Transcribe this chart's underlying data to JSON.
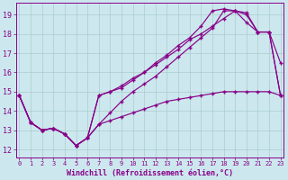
{
  "bg_color": "#cce8ee",
  "line_color": "#880088",
  "grid_color": "#aacccc",
  "xlabel": "Windchill (Refroidissement éolien,°C)",
  "xlabel_fontsize": 6.0,
  "ytick_labels": [
    "12",
    "13",
    "14",
    "15",
    "16",
    "17",
    "18",
    "19"
  ],
  "ytick_vals": [
    12,
    13,
    14,
    15,
    16,
    17,
    18,
    19
  ],
  "xtick_vals": [
    0,
    1,
    2,
    3,
    4,
    5,
    6,
    7,
    8,
    9,
    10,
    11,
    12,
    13,
    14,
    15,
    16,
    17,
    18,
    19,
    20,
    21,
    22,
    23
  ],
  "xlim": [
    -0.3,
    23.3
  ],
  "ylim": [
    11.6,
    19.6
  ],
  "series": [
    [
      14.8,
      13.4,
      13.0,
      13.1,
      12.8,
      12.2,
      12.6,
      13.3,
      13.9,
      14.5,
      15.0,
      15.4,
      15.8,
      16.3,
      16.8,
      17.3,
      17.8,
      18.3,
      19.2,
      19.2,
      19.1,
      18.1,
      18.1,
      16.5
    ],
    [
      14.8,
      13.4,
      13.0,
      13.1,
      12.8,
      12.2,
      12.6,
      14.8,
      15.0,
      15.3,
      15.7,
      16.0,
      16.4,
      16.8,
      17.2,
      17.7,
      18.0,
      18.4,
      18.8,
      19.2,
      18.6,
      18.1,
      18.1,
      14.8
    ],
    [
      14.8,
      13.4,
      13.0,
      13.1,
      12.8,
      12.2,
      12.6,
      14.8,
      15.0,
      15.2,
      15.6,
      16.0,
      16.5,
      16.9,
      17.4,
      17.8,
      18.4,
      19.2,
      19.3,
      19.2,
      19.0,
      18.1,
      18.1,
      14.8
    ],
    [
      14.8,
      13.4,
      13.0,
      13.1,
      12.8,
      12.2,
      12.6,
      13.3,
      13.5,
      13.7,
      13.9,
      14.1,
      14.3,
      14.5,
      14.6,
      14.7,
      14.8,
      14.9,
      15.0,
      15.0,
      15.0,
      15.0,
      15.0,
      14.8
    ]
  ]
}
